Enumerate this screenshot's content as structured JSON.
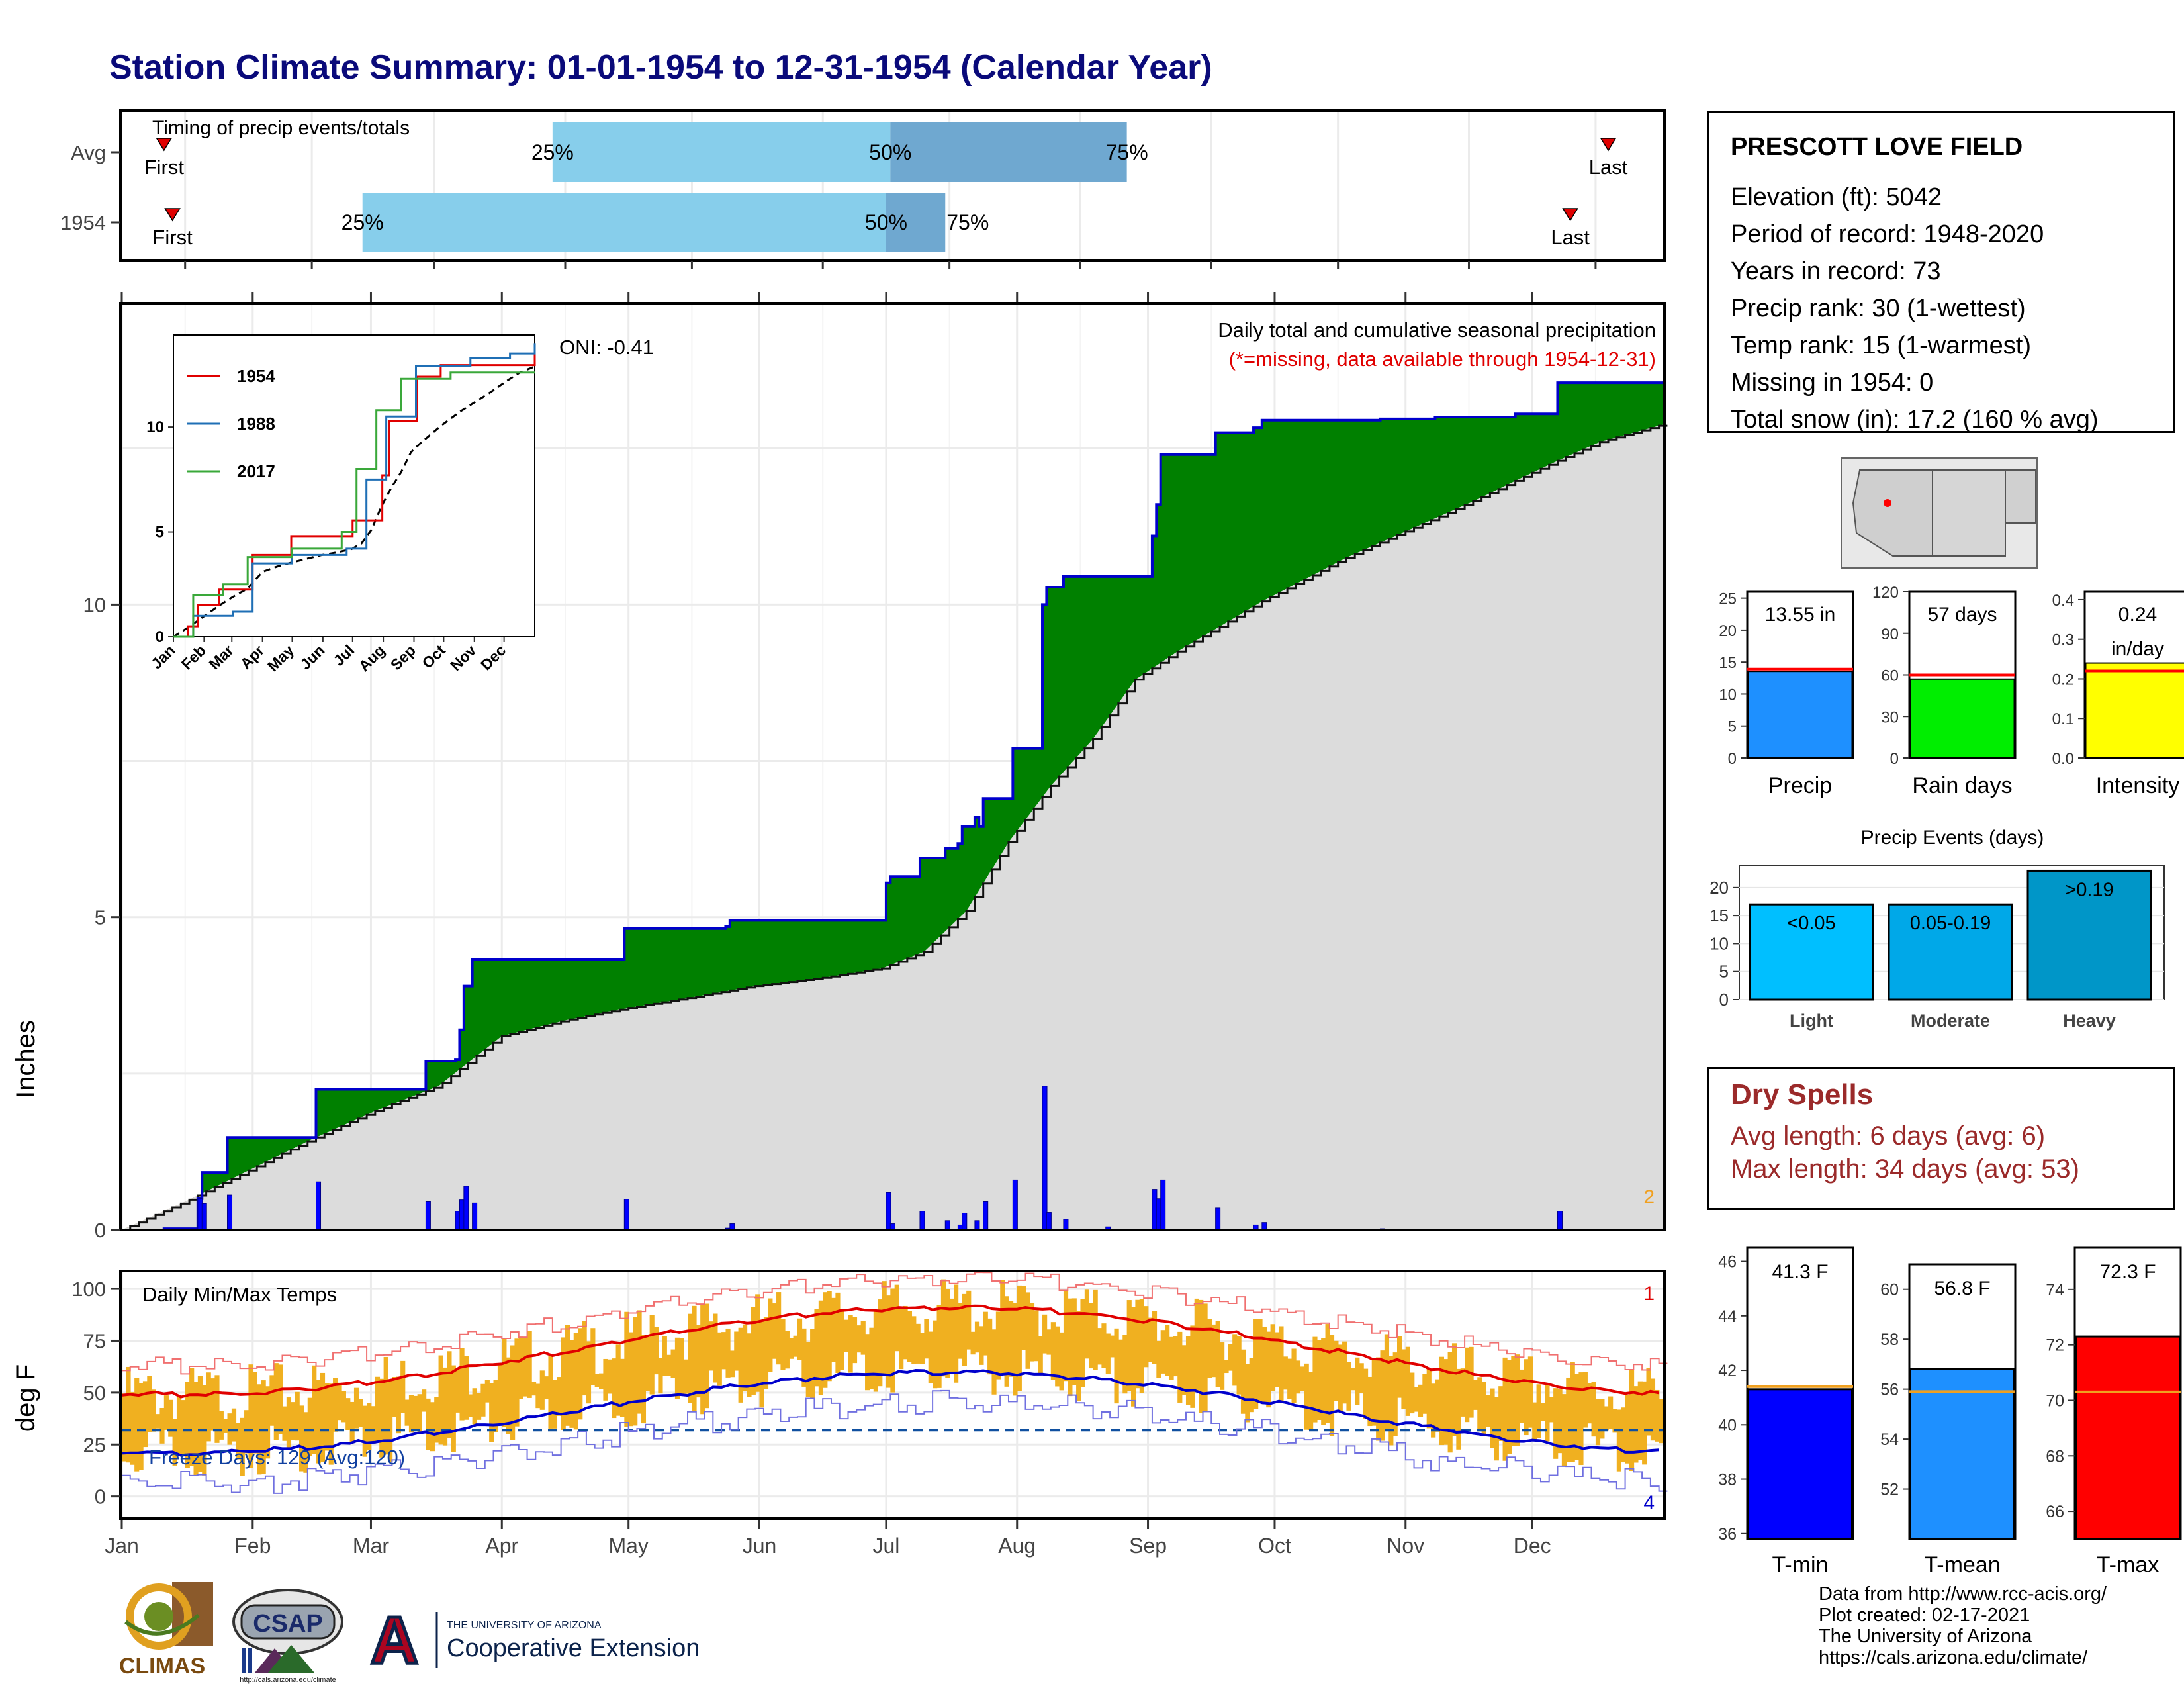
{
  "title": "Station Climate Summary: 01-01-1954 to 12-31-1954 (Calendar Year)",
  "timing": {
    "label": "Timing of precip events/totals",
    "rows": [
      {
        "name": "Avg",
        "first_day": 10,
        "q25_day": 102,
        "q50_day": 182,
        "q75_day": 238,
        "last_day": 352
      },
      {
        "name": "1954",
        "first_day": 12,
        "q25_day": 57,
        "q50_day": 181,
        "q75_day": 195,
        "last_day": 343
      }
    ],
    "first_label": "First",
    "last_label": "Last",
    "q25_label": "25%",
    "q50_label": "50%",
    "q75_label": "75%",
    "colors": {
      "q_light": "#87ceeb",
      "q_dark": "#6fa8d0",
      "marker": "#e00000"
    }
  },
  "precip": {
    "ylabel": "Inches",
    "yticks": [
      0,
      5,
      10
    ],
    "ylim": [
      0,
      14.8
    ],
    "header": "Daily total and cumulative seasonal precipitation",
    "note": "(*=missing, data available through 1954-12-31)",
    "oni_label": "ONI: -0.41",
    "corner_count": "2",
    "cumulative_1954": [
      [
        0,
        0
      ],
      [
        10,
        0.02
      ],
      [
        18,
        0.5
      ],
      [
        19,
        0.92
      ],
      [
        24,
        0.92
      ],
      [
        25,
        1.48
      ],
      [
        45,
        1.48
      ],
      [
        46,
        2.25
      ],
      [
        71,
        2.25
      ],
      [
        72,
        2.7
      ],
      [
        79,
        2.72
      ],
      [
        80,
        3.2
      ],
      [
        81,
        3.9
      ],
      [
        83,
        4.33
      ],
      [
        118,
        4.33
      ],
      [
        119,
        4.82
      ],
      [
        143,
        4.85
      ],
      [
        144,
        4.95
      ],
      [
        180,
        4.95
      ],
      [
        181,
        5.55
      ],
      [
        182,
        5.65
      ],
      [
        188,
        5.65
      ],
      [
        189,
        5.95
      ],
      [
        194,
        5.95
      ],
      [
        195,
        6.1
      ],
      [
        198,
        6.18
      ],
      [
        199,
        6.45
      ],
      [
        201,
        6.45
      ],
      [
        202,
        6.6
      ],
      [
        203,
        6.45
      ],
      [
        204,
        6.9
      ],
      [
        210,
        6.9
      ],
      [
        211,
        7.7
      ],
      [
        217,
        7.7
      ],
      [
        218,
        10.0
      ],
      [
        219,
        10.28
      ],
      [
        222,
        10.28
      ],
      [
        223,
        10.45
      ],
      [
        243,
        10.45
      ],
      [
        244,
        11.1
      ],
      [
        245,
        11.6
      ],
      [
        246,
        12.4
      ],
      [
        258,
        12.4
      ],
      [
        259,
        12.75
      ],
      [
        268,
        12.83
      ],
      [
        270,
        12.95
      ],
      [
        298,
        12.97
      ],
      [
        311,
        13.0
      ],
      [
        330,
        13.05
      ],
      [
        339,
        13.05
      ],
      [
        340,
        13.55
      ],
      [
        365,
        13.55
      ]
    ],
    "cumulative_avg": [
      [
        0,
        0
      ],
      [
        15,
        0.45
      ],
      [
        30,
        0.95
      ],
      [
        45,
        1.45
      ],
      [
        60,
        1.9
      ],
      [
        75,
        2.3
      ],
      [
        90,
        3.1
      ],
      [
        105,
        3.35
      ],
      [
        120,
        3.55
      ],
      [
        135,
        3.72
      ],
      [
        150,
        3.9
      ],
      [
        165,
        4.02
      ],
      [
        180,
        4.18
      ],
      [
        190,
        4.45
      ],
      [
        200,
        5.1
      ],
      [
        210,
        6.2
      ],
      [
        220,
        7.1
      ],
      [
        230,
        7.85
      ],
      [
        240,
        8.8
      ],
      [
        250,
        9.25
      ],
      [
        260,
        9.65
      ],
      [
        270,
        10.05
      ],
      [
        280,
        10.4
      ],
      [
        290,
        10.75
      ],
      [
        300,
        11.05
      ],
      [
        310,
        11.35
      ],
      [
        320,
        11.65
      ],
      [
        330,
        11.98
      ],
      [
        340,
        12.3
      ],
      [
        350,
        12.6
      ],
      [
        365,
        12.88
      ]
    ],
    "daily_bars": [
      [
        18,
        0.5
      ],
      [
        19,
        0.42
      ],
      [
        25,
        0.56
      ],
      [
        46,
        0.77
      ],
      [
        72,
        0.45
      ],
      [
        79,
        0.3
      ],
      [
        80,
        0.48
      ],
      [
        81,
        0.7
      ],
      [
        83,
        0.43
      ],
      [
        119,
        0.49
      ],
      [
        143,
        0.03
      ],
      [
        144,
        0.1
      ],
      [
        181,
        0.6
      ],
      [
        182,
        0.1
      ],
      [
        189,
        0.3
      ],
      [
        195,
        0.15
      ],
      [
        198,
        0.08
      ],
      [
        199,
        0.27
      ],
      [
        202,
        0.15
      ],
      [
        204,
        0.45
      ],
      [
        211,
        0.8
      ],
      [
        218,
        2.3
      ],
      [
        219,
        0.28
      ],
      [
        223,
        0.17
      ],
      [
        233,
        0.05
      ],
      [
        244,
        0.65
      ],
      [
        245,
        0.5
      ],
      [
        246,
        0.8
      ],
      [
        259,
        0.35
      ],
      [
        268,
        0.08
      ],
      [
        270,
        0.12
      ],
      [
        298,
        0.02
      ],
      [
        340,
        0.3
      ]
    ],
    "colors": {
      "above": "#008000",
      "below": "#8b5a14",
      "avg_fill": "#dcdcdc",
      "line": "#0000cc",
      "bars": "#0000ff"
    }
  },
  "inset": {
    "yticks": [
      0,
      5,
      10
    ],
    "series": [
      {
        "name": "1954",
        "color": "#e00000",
        "values": [
          [
            0,
            0
          ],
          [
            15,
            0.5
          ],
          [
            25,
            1.5
          ],
          [
            46,
            2.25
          ],
          [
            80,
            3.9
          ],
          [
            119,
            4.8
          ],
          [
            181,
            5.55
          ],
          [
            211,
            7.7
          ],
          [
            218,
            10.28
          ],
          [
            246,
            12.4
          ],
          [
            270,
            12.95
          ],
          [
            365,
            13.55
          ]
        ]
      },
      {
        "name": "1988",
        "color": "#1f6fb5",
        "values": [
          [
            0,
            0
          ],
          [
            20,
            1.0
          ],
          [
            60,
            1.2
          ],
          [
            80,
            3.5
          ],
          [
            120,
            3.9
          ],
          [
            175,
            4.2
          ],
          [
            195,
            7.5
          ],
          [
            215,
            10.5
          ],
          [
            245,
            12.9
          ],
          [
            300,
            13.3
          ],
          [
            340,
            13.5
          ],
          [
            365,
            14.0
          ]
        ]
      },
      {
        "name": "2017",
        "color": "#3aa83a",
        "values": [
          [
            0,
            0
          ],
          [
            20,
            2.0
          ],
          [
            50,
            2.5
          ],
          [
            75,
            3.8
          ],
          [
            120,
            4.2
          ],
          [
            170,
            5.0
          ],
          [
            185,
            8.0
          ],
          [
            205,
            10.8
          ],
          [
            230,
            12.3
          ],
          [
            280,
            12.6
          ],
          [
            365,
            12.6
          ]
        ]
      }
    ]
  },
  "temps": {
    "ylabel": "deg F",
    "yticks": [
      0,
      25,
      50,
      75,
      100
    ],
    "ylim": [
      -10,
      108
    ],
    "label": "Daily Min/Max Temps",
    "freeze_label": "Freeze Days: 129 (Avg:120)",
    "freeze_line": 32,
    "corner_top": "1",
    "corner_bottom": "4",
    "colors": {
      "bars": "#f0b020",
      "avg_max": "#e00000",
      "avg_min": "#0000cc",
      "rec_max": "#f07070",
      "rec_min": "#7070e0"
    }
  },
  "months": [
    "Jan",
    "Feb",
    "Mar",
    "Apr",
    "May",
    "Jun",
    "Jul",
    "Aug",
    "Sep",
    "Oct",
    "Nov",
    "Dec"
  ],
  "station": {
    "name": "PRESCOTT LOVE FIELD",
    "rows": [
      "Elevation (ft): 5042",
      "Period of record: 1948-2020",
      "Years in record: 73",
      "Precip rank: 30 (1-wettest)",
      "Temp rank: 15 (1-warmest)",
      "Missing in 1954: 0",
      "Total snow (in): 17.2 (160 % avg)"
    ]
  },
  "mini_bars": [
    {
      "label": "Precip",
      "value_label": "13.55 in",
      "value": 13.55,
      "avg": 13.9,
      "ymax": 26,
      "yticks": [
        0,
        5,
        10,
        15,
        20,
        25
      ],
      "color": "#1e90ff"
    },
    {
      "label": "Rain days",
      "value_label": "57 days",
      "value": 57,
      "avg": 60,
      "ymax": 120,
      "yticks": [
        0,
        30,
        60,
        90,
        120
      ],
      "color": "#00ee00"
    },
    {
      "label": "Intensity",
      "value_label": "0.24",
      "value_label2": "in/day",
      "value": 0.24,
      "avg": 0.22,
      "ymax": 0.42,
      "yticks": [
        0.0,
        0.1,
        0.2,
        0.3,
        0.4
      ],
      "color": "#ffff00"
    }
  ],
  "events": {
    "title": "Precip Events (days)",
    "yticks": [
      0,
      5,
      10,
      15,
      20
    ],
    "ymax": 24,
    "bars": [
      {
        "category": "Light",
        "label": "<0.05",
        "value": 17,
        "color": "#00bfff"
      },
      {
        "category": "Moderate",
        "label": "0.05-0.19",
        "value": 17,
        "color": "#00a8e8"
      },
      {
        "category": "Heavy",
        "label": ">0.19",
        "value": 23,
        "color": "#0096c8"
      }
    ]
  },
  "dry_spells": {
    "title": "Dry Spells",
    "rows": [
      "Avg length: 6 days (avg: 6)",
      "Max length: 34 days (avg: 53)"
    ]
  },
  "temp_bars": [
    {
      "label": "T-min",
      "value_label": "41.3 F",
      "value": 41.3,
      "avg": 41.4,
      "ylim": [
        35.8,
        46.5
      ],
      "yticks": [
        36,
        38,
        40,
        42,
        44,
        46
      ],
      "color": "#0000ff"
    },
    {
      "label": "T-mean",
      "value_label": "56.8 F",
      "value": 56.8,
      "avg": 55.9,
      "ylim": [
        50.0,
        61.0
      ],
      "yticks": [
        52,
        54,
        56,
        58,
        60
      ],
      "color": "#1e90ff"
    },
    {
      "label": "T-max",
      "value_label": "72.3 F",
      "value": 72.3,
      "avg": 70.3,
      "ylim": [
        65.0,
        75.5
      ],
      "yticks": [
        66,
        68,
        70,
        72,
        74
      ],
      "color": "#ff0000"
    }
  ],
  "credits": [
    "Data from http://www.rcc-acis.org/",
    "Plot created: 02-17-2021",
    "The University of Arizona",
    "https://cals.arizona.edu/climate/"
  ],
  "logos": {
    "climas": "CLIMAS",
    "csap": "CSAP",
    "csap_url": "http://cals.arizona.edu/climate",
    "ua_letter": "A",
    "ua_line1": "THE UNIVERSITY OF ARIZONA",
    "ua_line2": "Cooperative Extension"
  }
}
